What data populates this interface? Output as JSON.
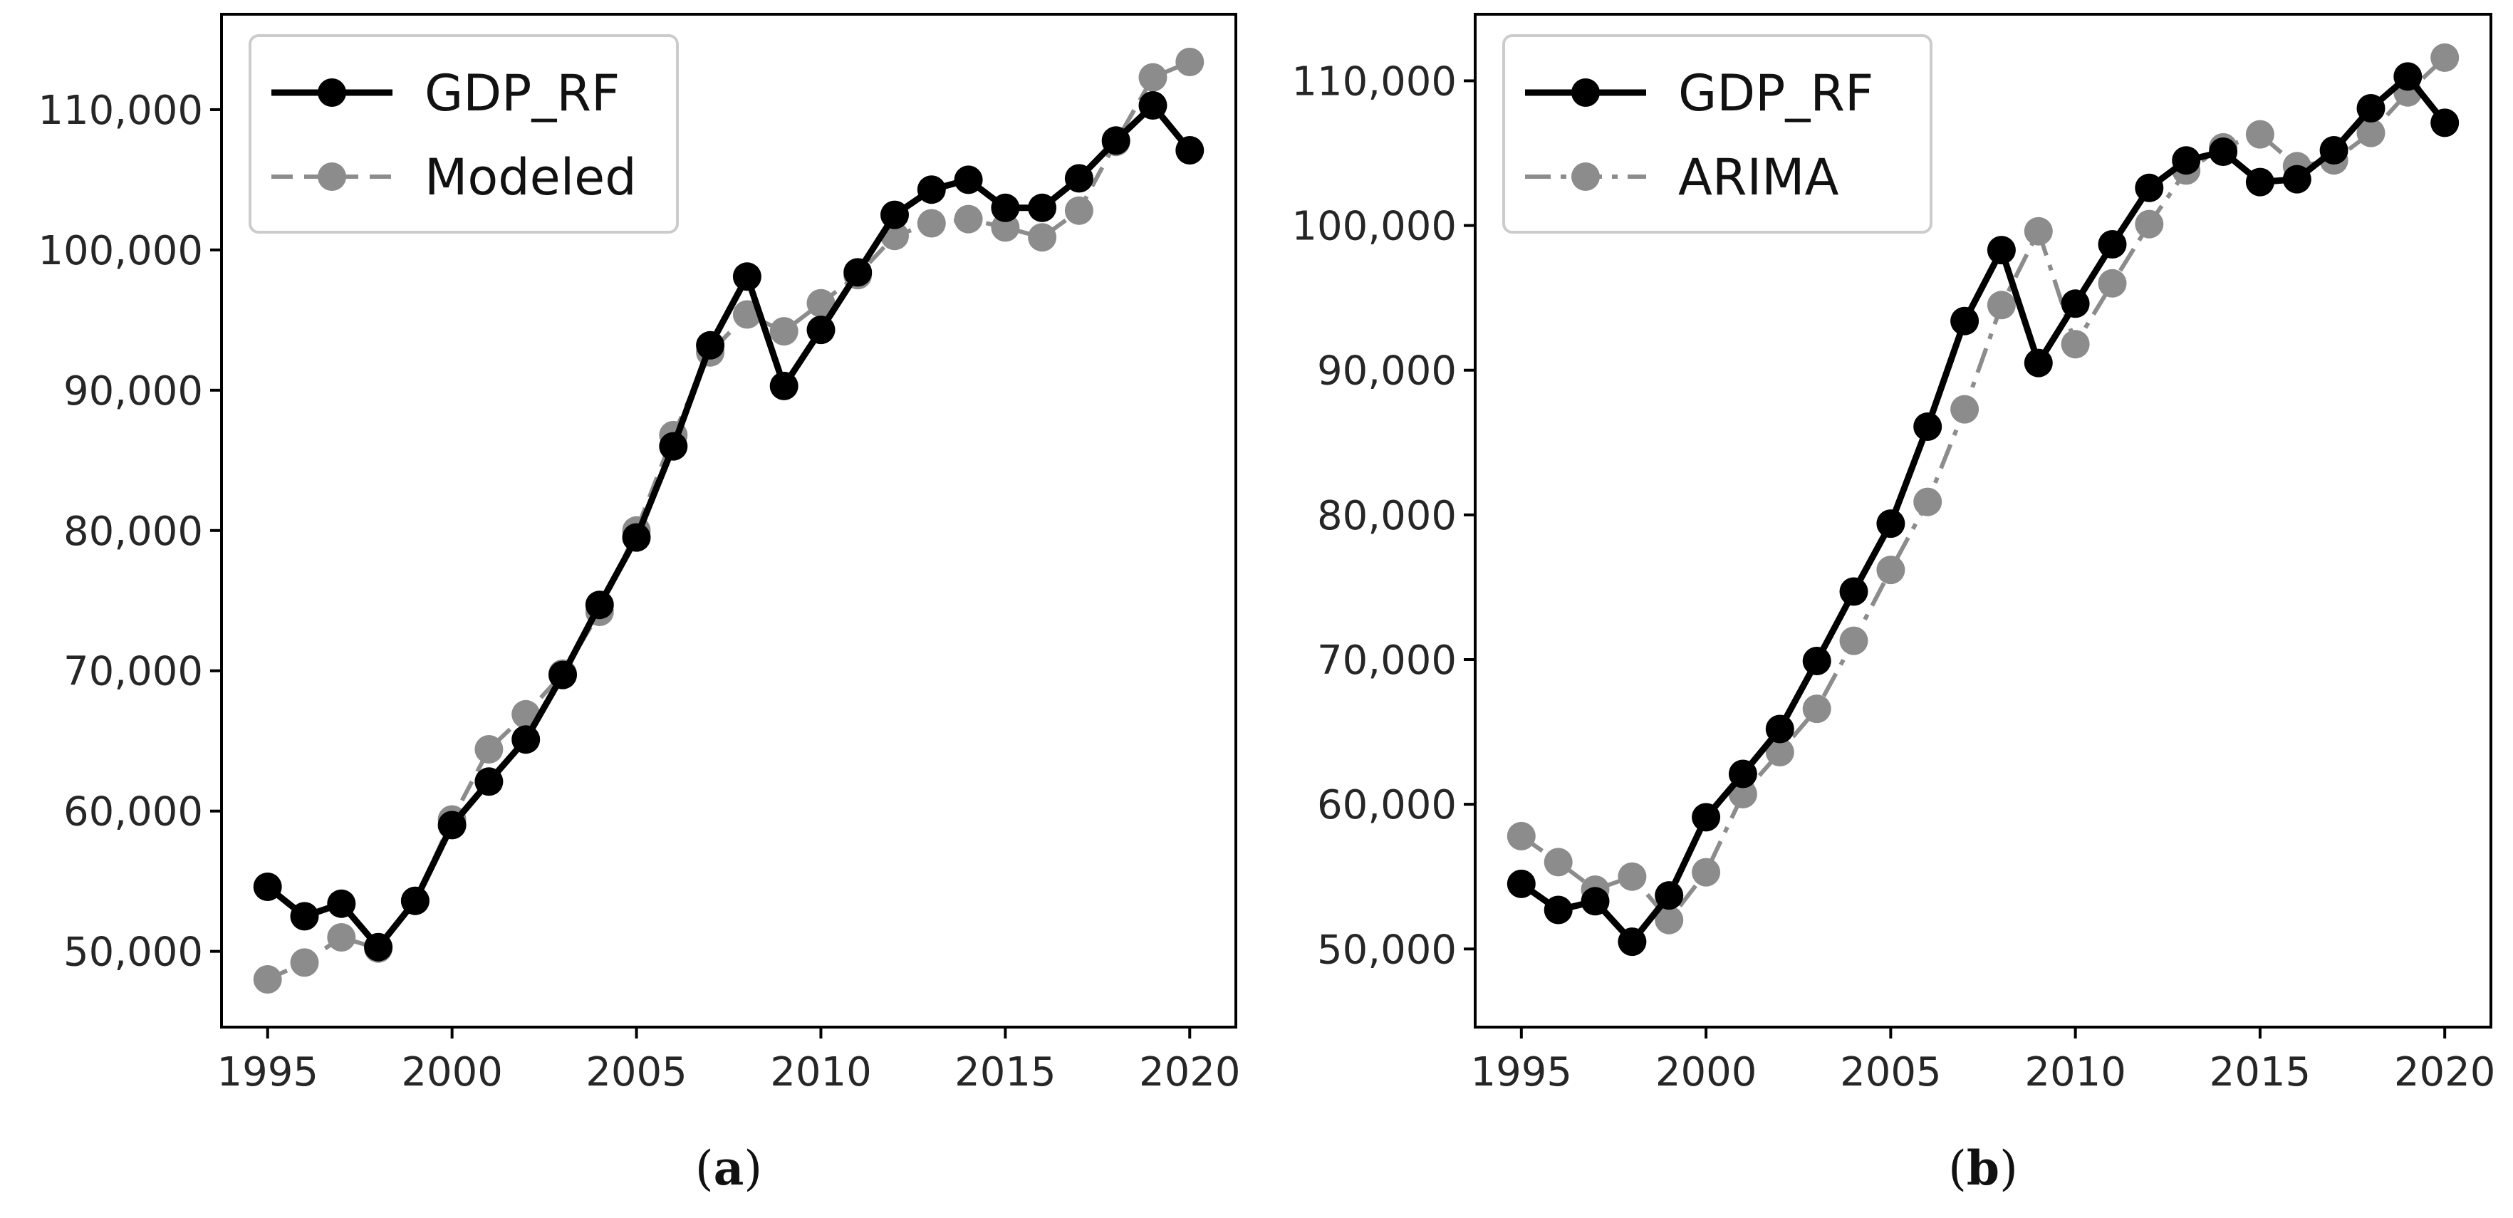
{
  "chart_data": [
    {
      "type": "line",
      "panel_label": "a",
      "caption_open": "(",
      "caption_close": ")",
      "x": [
        1995,
        1996,
        1997,
        1998,
        1999,
        2000,
        2001,
        2002,
        2003,
        2004,
        2005,
        2006,
        2007,
        2008,
        2009,
        2010,
        2011,
        2012,
        2013,
        2014,
        2015,
        2016,
        2017,
        2018,
        2019,
        2020
      ],
      "series": [
        {
          "name": "GDP_RF",
          "color": "#000000",
          "style": "solid",
          "values": [
            54600,
            52500,
            53400,
            50300,
            53600,
            59000,
            62100,
            65100,
            69700,
            74700,
            79500,
            86000,
            93200,
            98100,
            90300,
            94300,
            98400,
            102500,
            104300,
            105000,
            103000,
            103000,
            105100,
            107800,
            110300,
            107100
          ]
        },
        {
          "name": "Modeled",
          "color": "#8c8c8c",
          "style": "dashed",
          "values": [
            48000,
            49200,
            51000,
            50200,
            53600,
            59400,
            64400,
            66900,
            69800,
            74200,
            80000,
            86800,
            92700,
            95400,
            94200,
            96200,
            98200,
            101000,
            101900,
            102200,
            101600,
            100900,
            102800,
            107700,
            112300,
            113400
          ]
        }
      ],
      "xticks": [
        1995,
        2000,
        2005,
        2010,
        2015,
        2020
      ],
      "xtick_labels": [
        "1995",
        "2000",
        "2005",
        "2010",
        "2015",
        "2020"
      ],
      "yticks": [
        50000,
        60000,
        70000,
        80000,
        90000,
        100000,
        110000
      ],
      "ytick_labels": [
        "50,000",
        "60,000",
        "70,000",
        "80,000",
        "90,000",
        "100,000",
        "110,000"
      ],
      "xlim": [
        1993.75,
        2021.25
      ],
      "ylim": [
        44600,
        116800
      ],
      "legend": "upper-left",
      "grid": false
    },
    {
      "type": "line",
      "panel_label": "b",
      "caption_open": "(",
      "caption_close": ")",
      "x": [
        1995,
        1996,
        1997,
        1998,
        1999,
        2000,
        2001,
        2002,
        2003,
        2004,
        2005,
        2006,
        2007,
        2008,
        2009,
        2010,
        2011,
        2012,
        2013,
        2014,
        2015,
        2016,
        2017,
        2018,
        2019,
        2020
      ],
      "series": [
        {
          "name": "GDP_RF",
          "color": "#000000",
          "style": "solid",
          "values": [
            54500,
            52700,
            53300,
            50500,
            53700,
            59100,
            62100,
            65200,
            69900,
            74700,
            79400,
            86100,
            93400,
            98300,
            90500,
            94600,
            98700,
            102600,
            104500,
            105100,
            103000,
            103200,
            105200,
            108100,
            110300,
            107100
          ]
        },
        {
          "name": "ARIMA",
          "color": "#8c8c8c",
          "style": "dashdot",
          "values": [
            57800,
            56000,
            54100,
            55000,
            52000,
            55300,
            60700,
            63600,
            66600,
            71300,
            76200,
            80900,
            87300,
            94500,
            99600,
            91800,
            96000,
            100100,
            103800,
            105400,
            106300,
            104100,
            104500,
            106400,
            109200,
            111600
          ]
        }
      ],
      "xticks": [
        1995,
        2000,
        2005,
        2010,
        2015,
        2020
      ],
      "xtick_labels": [
        "1995",
        "2000",
        "2005",
        "2010",
        "2015",
        "2020"
      ],
      "yticks": [
        50000,
        60000,
        70000,
        80000,
        90000,
        100000,
        110000
      ],
      "ytick_labels": [
        "50,000",
        "60,000",
        "70,000",
        "80,000",
        "90,000",
        "100,000",
        "110,000"
      ],
      "xlim": [
        1993.75,
        2021.25
      ],
      "ylim": [
        44600,
        114600
      ],
      "legend": "upper-left",
      "grid": false
    }
  ]
}
